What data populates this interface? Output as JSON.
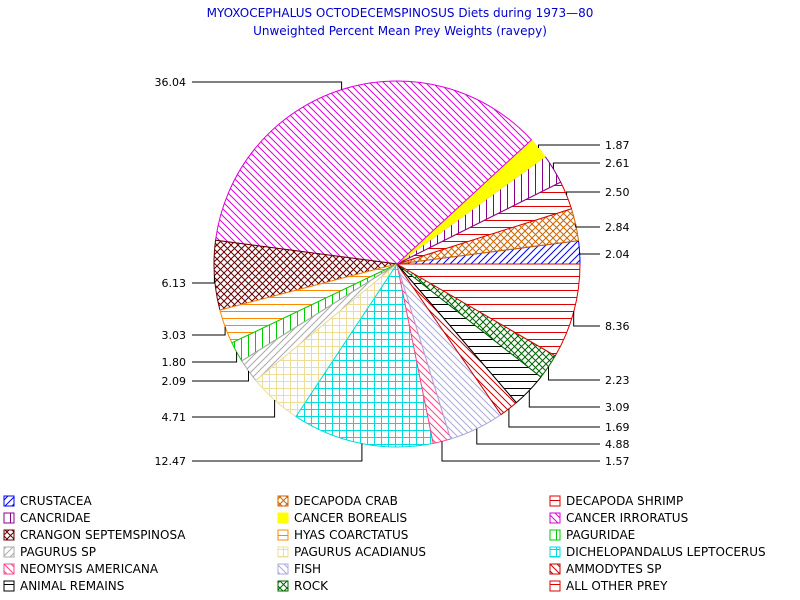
{
  "chart_data": {
    "type": "pie",
    "title": "MYOXOCEPHALUS OCTODECEMSPINOSUS Diets during 1973—80",
    "subtitle": "Unweighted Percent Mean Prey Weights (ravepy)",
    "slices": [
      {
        "label": "2.04",
        "value": 2.04,
        "category": "CRUSTACEA",
        "color": "#0000ff",
        "pattern": "diag-right"
      },
      {
        "label": "2.84",
        "value": 2.84,
        "category": "DECAPODA CRAB",
        "color": "#cc6600",
        "pattern": "cross-diag"
      },
      {
        "label": "2.50",
        "value": 2.5,
        "category": "DECAPODA SHRIMP",
        "color": "#dd0000",
        "pattern": "horizontal"
      },
      {
        "label": "2.61",
        "value": 2.61,
        "category": "CANCRIDAE",
        "color": "#880088",
        "pattern": "vertical"
      },
      {
        "label": "1.87",
        "value": 1.87,
        "category": "CANCER BOREALIS",
        "color": "#ffff00",
        "pattern": "solid"
      },
      {
        "label": "36.04",
        "value": 36.04,
        "category": "CANCER IRRORATUS",
        "color": "#dd00dd",
        "pattern": "diag-left"
      },
      {
        "label": "6.13",
        "value": 6.13,
        "category": "CRANGON SEPTEMSPINOSA",
        "color": "#660000",
        "pattern": "cross-diag"
      },
      {
        "label": "3.03",
        "value": 3.03,
        "category": "HYAS COARCTATUS",
        "color": "#ff8800",
        "pattern": "horizontal"
      },
      {
        "label": "1.80",
        "value": 1.8,
        "category": "PAGURIDAE",
        "color": "#00cc00",
        "pattern": "vertical"
      },
      {
        "label": "2.09",
        "value": 2.09,
        "category": "PAGURUS SP",
        "color": "#aaaaaa",
        "pattern": "diag-right"
      },
      {
        "label": "4.71",
        "value": 4.71,
        "category": "PAGURUS ACADIANUS",
        "color": "#eedd99",
        "pattern": "grid"
      },
      {
        "label": "12.47",
        "value": 12.47,
        "category": "DICHELOPANDALUS LEPTOCERUS",
        "color": "#00dddd",
        "pattern": "grid"
      },
      {
        "label": "1.57",
        "value": 1.57,
        "category": "NEOMYSIS AMERICANA",
        "color": "#ff4488",
        "pattern": "diag-left"
      },
      {
        "label": "4.88",
        "value": 4.88,
        "category": "FISH",
        "color": "#aaaadd",
        "pattern": "diag-left"
      },
      {
        "label": "1.69",
        "value": 1.69,
        "category": "AMMODYTES SP",
        "color": "#cc0000",
        "pattern": "diag-left"
      },
      {
        "label": "3.09",
        "value": 3.09,
        "category": "ANIMAL REMAINS",
        "color": "#000000",
        "pattern": "horizontal"
      },
      {
        "label": "2.23",
        "value": 2.23,
        "category": "ROCK",
        "color": "#006600",
        "pattern": "cross-diag"
      },
      {
        "label": "8.36",
        "value": 8.36,
        "category": "ALL OTHER PREY",
        "color": "#dd0000",
        "pattern": "horizontal"
      }
    ],
    "legend": {
      "placement": "bottom",
      "columns": 3,
      "items": [
        {
          "name": "CRUSTACEA",
          "color": "#0000ff",
          "pattern": "diag-right"
        },
        {
          "name": "DECAPODA CRAB",
          "color": "#cc6600",
          "pattern": "cross-diag"
        },
        {
          "name": "DECAPODA SHRIMP",
          "color": "#dd0000",
          "pattern": "horizontal"
        },
        {
          "name": "CANCRIDAE",
          "color": "#880088",
          "pattern": "vertical"
        },
        {
          "name": "CANCER BOREALIS",
          "color": "#ffff00",
          "pattern": "solid"
        },
        {
          "name": "CANCER IRRORATUS",
          "color": "#dd00dd",
          "pattern": "diag-left"
        },
        {
          "name": "CRANGON SEPTEMSPINOSA",
          "color": "#660000",
          "pattern": "cross-diag"
        },
        {
          "name": "HYAS COARCTATUS",
          "color": "#ff8800",
          "pattern": "horizontal"
        },
        {
          "name": "PAGURIDAE",
          "color": "#00cc00",
          "pattern": "vertical"
        },
        {
          "name": "PAGURUS SP",
          "color": "#aaaaaa",
          "pattern": "diag-right"
        },
        {
          "name": "PAGURUS ACADIANUS",
          "color": "#eedd99",
          "pattern": "grid"
        },
        {
          "name": "DICHELOPANDALUS LEPTOCERUS",
          "color": "#00dddd",
          "pattern": "grid"
        },
        {
          "name": "NEOMYSIS AMERICANA",
          "color": "#ff4488",
          "pattern": "diag-left"
        },
        {
          "name": "FISH",
          "color": "#aaaadd",
          "pattern": "diag-left"
        },
        {
          "name": "AMMODYTES SP",
          "color": "#cc0000",
          "pattern": "diag-left"
        },
        {
          "name": "ANIMAL REMAINS",
          "color": "#000000",
          "pattern": "horizontal"
        },
        {
          "name": "ROCK",
          "color": "#006600",
          "pattern": "cross-diag"
        },
        {
          "name": "ALL OTHER PREY",
          "color": "#dd0000",
          "pattern": "horizontal"
        }
      ]
    }
  }
}
